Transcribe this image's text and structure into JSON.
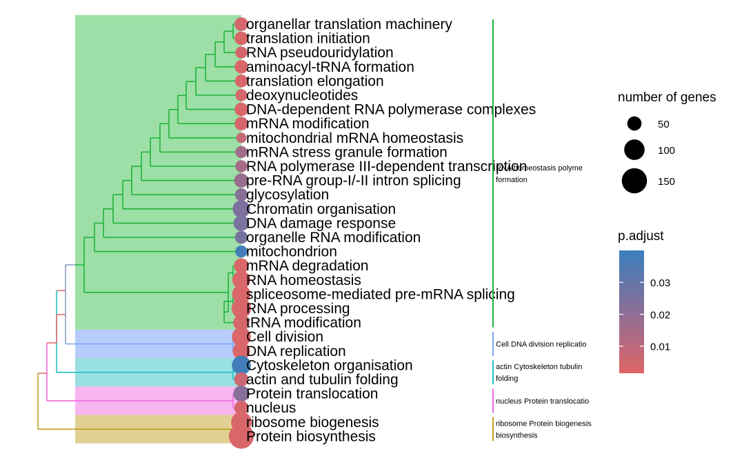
{
  "chart_data": {
    "type": "treeplot",
    "terms": [
      {
        "label": "organellar translation machinery",
        "count": 50,
        "p_adjust": 0.004,
        "cluster": 0
      },
      {
        "label": "translation initiation",
        "count": 50,
        "p_adjust": 0.003,
        "cluster": 0
      },
      {
        "label": "RNA pseudouridylation",
        "count": 40,
        "p_adjust": 0.004,
        "cluster": 0
      },
      {
        "label": "aminoacyl-tRNA formation",
        "count": 50,
        "p_adjust": 0.003,
        "cluster": 0
      },
      {
        "label": "translation elongation",
        "count": 45,
        "p_adjust": 0.003,
        "cluster": 0
      },
      {
        "label": "deoxynucleotides",
        "count": 40,
        "p_adjust": 0.004,
        "cluster": 0
      },
      {
        "label": "DNA-dependent RNA polymerase complexes",
        "count": 50,
        "p_adjust": 0.003,
        "cluster": 0
      },
      {
        "label": "mRNA modification",
        "count": 50,
        "p_adjust": 0.004,
        "cluster": 0
      },
      {
        "label": "mitochondrial mRNA homeostasis",
        "count": 30,
        "p_adjust": 0.008,
        "cluster": 0
      },
      {
        "label": "mRNA stress granule formation",
        "count": 40,
        "p_adjust": 0.016,
        "cluster": 0
      },
      {
        "label": "RNA polymerase III-dependent transcription",
        "count": 40,
        "p_adjust": 0.015,
        "cluster": 0
      },
      {
        "label": "pre-RNA group-I/-II intron splicing",
        "count": 55,
        "p_adjust": 0.018,
        "cluster": 0
      },
      {
        "label": "glycosylation",
        "count": 45,
        "p_adjust": 0.022,
        "cluster": 0
      },
      {
        "label": "Chromatin organisation",
        "count": 80,
        "p_adjust": 0.024,
        "cluster": 0
      },
      {
        "label": "DNA damage response",
        "count": 65,
        "p_adjust": 0.025,
        "cluster": 0
      },
      {
        "label": "organelle RNA modification",
        "count": 45,
        "p_adjust": 0.026,
        "cluster": 0
      },
      {
        "label": "mitochondrion",
        "count": 40,
        "p_adjust": 0.038,
        "cluster": 0
      },
      {
        "label": "mRNA degradation",
        "count": 60,
        "p_adjust": 0.003,
        "cluster": 0
      },
      {
        "label": "RNA homeostasis",
        "count": 85,
        "p_adjust": 0.003,
        "cluster": 0
      },
      {
        "label": "spliceosome-mediated pre-mRNA splicing",
        "count": 90,
        "p_adjust": 0.003,
        "cluster": 0
      },
      {
        "label": "RNA processing",
        "count": 100,
        "p_adjust": 0.003,
        "cluster": 0
      },
      {
        "label": "tRNA modification",
        "count": 70,
        "p_adjust": 0.004,
        "cluster": 0
      },
      {
        "label": "Cell division",
        "count": 95,
        "p_adjust": 0.003,
        "cluster": 1
      },
      {
        "label": "DNA replication",
        "count": 80,
        "p_adjust": 0.003,
        "cluster": 1
      },
      {
        "label": "Cytoskeleton organisation",
        "count": 95,
        "p_adjust": 0.038,
        "cluster": 2
      },
      {
        "label": "actin and tubulin folding",
        "count": 55,
        "p_adjust": 0.006,
        "cluster": 2
      },
      {
        "label": "Protein translocation",
        "count": 70,
        "p_adjust": 0.022,
        "cluster": 3
      },
      {
        "label": "nucleus",
        "count": 55,
        "p_adjust": 0.004,
        "cluster": 3
      },
      {
        "label": "ribosome biogenesis",
        "count": 110,
        "p_adjust": 0.003,
        "cluster": 4
      },
      {
        "label": "Protein biosynthesis",
        "count": 160,
        "p_adjust": 0.003,
        "cluster": 4
      }
    ],
    "clusters": [
      {
        "label_lines": [
          "RNA homeostasis polyme",
          "formation"
        ],
        "color": "#1fb33a",
        "bg": "#9ddfa6"
      },
      {
        "label_lines": [
          "Cell DNA division replicatio"
        ],
        "color": "#7ba4f5",
        "bg": "#b7ccfb"
      },
      {
        "label_lines": [
          "actin Cytoskeleton tubulin",
          "folding"
        ],
        "color": "#1fbcc4",
        "bg": "#98e0e2"
      },
      {
        "label_lines": [
          "nucleus Protein translocatio"
        ],
        "color": "#ee6ae0",
        "bg": "#f8b6f0"
      },
      {
        "label_lines": [
          "ribosome Protein biogenesis",
          "biosynthesis"
        ],
        "color": "#c2a020",
        "bg": "#e0d093"
      }
    ],
    "size_legend": {
      "title": "number of genes",
      "breaks": [
        50,
        100,
        150
      ]
    },
    "color_legend": {
      "title": "p.adjust",
      "ticks": [
        0.01,
        0.02,
        0.03
      ],
      "min": 0.0015,
      "max": 0.04,
      "low_color": "#e06666",
      "high_color": "#3a7fbd"
    }
  }
}
